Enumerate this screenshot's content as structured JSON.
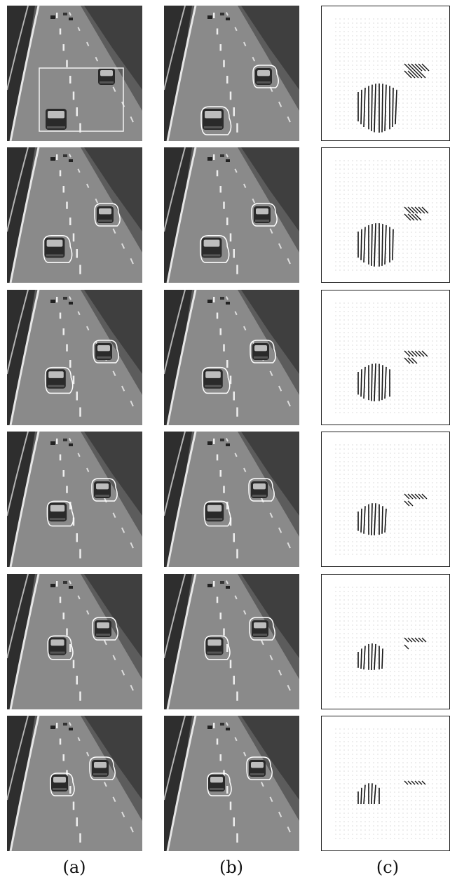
{
  "captions": {
    "a": "(a)",
    "b": "(b)",
    "c": "(c)"
  },
  "colors": {
    "background": "#ffffff",
    "road": "#7a7a7a",
    "contour": "#ffffff",
    "vector": "#111111",
    "grid_dot": "#9a9a9a"
  },
  "panels": {
    "a": {
      "content": "highway-frames-with-contours",
      "first_frame_has_selection_box": true
    },
    "b": {
      "content": "highway-frames-with-contours"
    },
    "c": {
      "content": "motion-vector-fields"
    }
  },
  "rows": 6
}
